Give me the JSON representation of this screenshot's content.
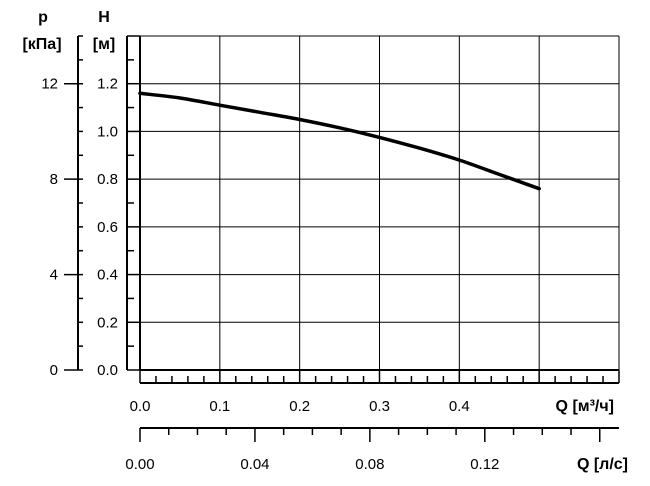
{
  "chart_data": {
    "type": "line",
    "title": "",
    "grid": true,
    "axes": {
      "head": {
        "label_top": "H",
        "label_unit": "[м]",
        "range": [
          0,
          1.4
        ],
        "ticks": [
          0.0,
          0.2,
          0.4,
          0.6,
          0.8,
          1.0,
          1.2
        ],
        "tick_labels": [
          "0.0",
          "0.2",
          "0.4",
          "0.6",
          "0.8",
          "1.0",
          "1.2"
        ]
      },
      "pressure": {
        "label_top": "p",
        "label_unit": "[кПа]",
        "range": [
          0,
          14
        ],
        "ticks": [
          0,
          4,
          8,
          12
        ],
        "tick_labels": [
          "0",
          "4",
          "8",
          "12"
        ]
      },
      "flow_m3h": {
        "label": "Q [м³/ч]",
        "range": [
          0,
          0.6
        ],
        "ticks": [
          0.0,
          0.1,
          0.2,
          0.3,
          0.4
        ],
        "tick_labels": [
          "0.0",
          "0.1",
          "0.2",
          "0.3",
          "0.4"
        ]
      },
      "flow_ls": {
        "label": "Q [л/с]",
        "range": [
          0,
          0.1667
        ],
        "ticks": [
          0.0,
          0.04,
          0.08,
          0.12
        ],
        "tick_labels": [
          "0.00",
          "0.04",
          "0.08",
          "0.12"
        ]
      }
    },
    "series": [
      {
        "x": [
          0.0,
          0.05,
          0.1,
          0.15,
          0.2,
          0.25,
          0.3,
          0.35,
          0.4,
          0.45,
          0.5
        ],
        "y": [
          1.16,
          1.14,
          1.11,
          1.08,
          1.05,
          1.015,
          0.975,
          0.93,
          0.88,
          0.82,
          0.76
        ]
      }
    ]
  }
}
